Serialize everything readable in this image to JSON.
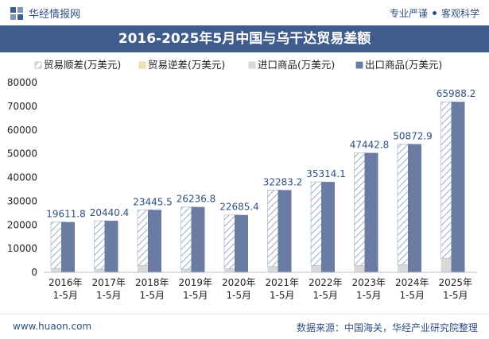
{
  "header": {
    "brand_name": "华经情报网",
    "tagline_left": "专业严谨",
    "tagline_right": "客观科学"
  },
  "footer": {
    "website": "www.huaon.com",
    "source": "数据来源：中国海关，华经产业研究院整理"
  },
  "colors": {
    "title_bg": "#3f5c8c",
    "export_bar": "#6b7ca3",
    "import_bar": "#d9d9d9",
    "surplus_hatch": "#a9b8cc",
    "deficit_bar": "#f0e2b6"
  },
  "chart_data": {
    "type": "bar",
    "title": "2016-2025年5月中国与乌干达贸易差额",
    "categories": [
      "2016年\n1-5月",
      "2017年\n1-5月",
      "2018年\n1-5月",
      "2019年\n1-5月",
      "2020年\n1-5月",
      "2021年\n1-5月",
      "2022年\n1-5月",
      "2023年\n1-5月",
      "2024年\n1-5月",
      "2025年\n1-5月"
    ],
    "series": [
      {
        "name": "贸易顺差(万美元)",
        "values": [
          19611.8,
          20440.4,
          23445.5,
          26236.8,
          22685.4,
          32283.2,
          35314.1,
          47442.8,
          50872.9,
          65988.2
        ]
      },
      {
        "name": "贸易逆差(万美元)",
        "values": [
          0,
          0,
          0,
          0,
          0,
          0,
          0,
          0,
          0,
          0
        ]
      },
      {
        "name": "进口商品(万美元)",
        "values": [
          1600,
          1300,
          2900,
          1300,
          1500,
          2400,
          2800,
          2900,
          3200,
          5900
        ]
      },
      {
        "name": "出口商品(万美元)",
        "values": [
          21211.8,
          21740.4,
          26345.5,
          27536.8,
          24185.4,
          34683.2,
          38114.1,
          50342.8,
          54072.9,
          71888.2
        ]
      }
    ],
    "data_labels": [
      "19611.8",
      "20440.4",
      "23445.5",
      "26236.8",
      "22685.4",
      "32283.2",
      "35314.1",
      "47442.8",
      "50872.9",
      "65988.2"
    ],
    "yticks": [
      "0",
      "10000",
      "20000",
      "30000",
      "40000",
      "50000",
      "60000",
      "70000",
      "80000"
    ],
    "ylim": [
      0,
      80000
    ],
    "legend_position": "top",
    "grid": false
  }
}
